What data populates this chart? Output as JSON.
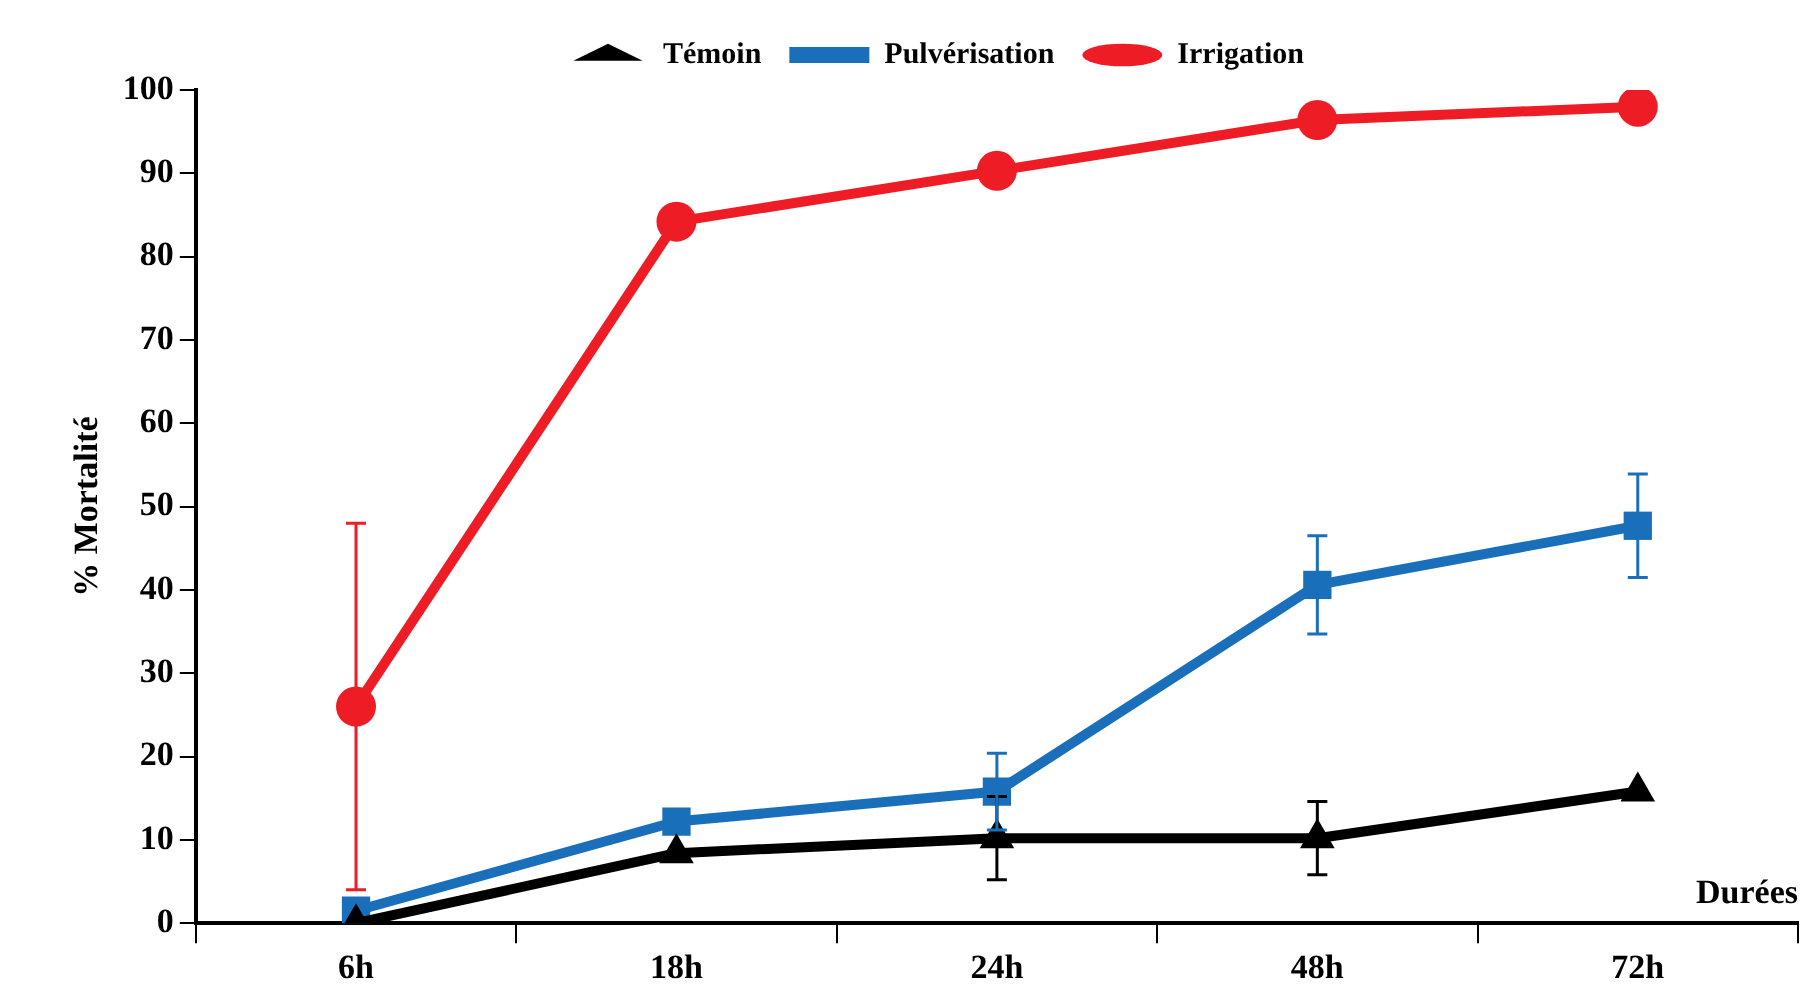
{
  "chart_data": {
    "type": "line",
    "xlabel": "Durées",
    "ylabel": "% Mortalité",
    "categories": [
      "6h",
      "18h",
      "24h",
      "48h",
      "72h"
    ],
    "ylim": [
      0,
      100
    ],
    "yticks": [
      0,
      10,
      20,
      30,
      40,
      50,
      60,
      70,
      80,
      90,
      100
    ],
    "grid": false,
    "legend": "top",
    "line_style": "solid",
    "series": [
      {
        "name": "Témoin",
        "color": "#000000",
        "marker": "triangle",
        "values": [
          0,
          8.4,
          10.2,
          10.2,
          15.8
        ],
        "errors": [
          null,
          null,
          5,
          4.4,
          null
        ]
      },
      {
        "name": "Pulvérisation",
        "color": "#1a6fba",
        "marker": "square",
        "values": [
          1.5,
          12.2,
          15.8,
          40.6,
          47.7
        ],
        "errors": [
          null,
          null,
          4.6,
          5.9,
          6.2
        ]
      },
      {
        "name": "Irrigation",
        "color": "#ee1c24",
        "marker": "circle",
        "values": [
          26,
          84.2,
          90.3,
          96.4,
          98
        ],
        "errors": [
          22,
          null,
          null,
          null,
          null
        ]
      }
    ]
  }
}
